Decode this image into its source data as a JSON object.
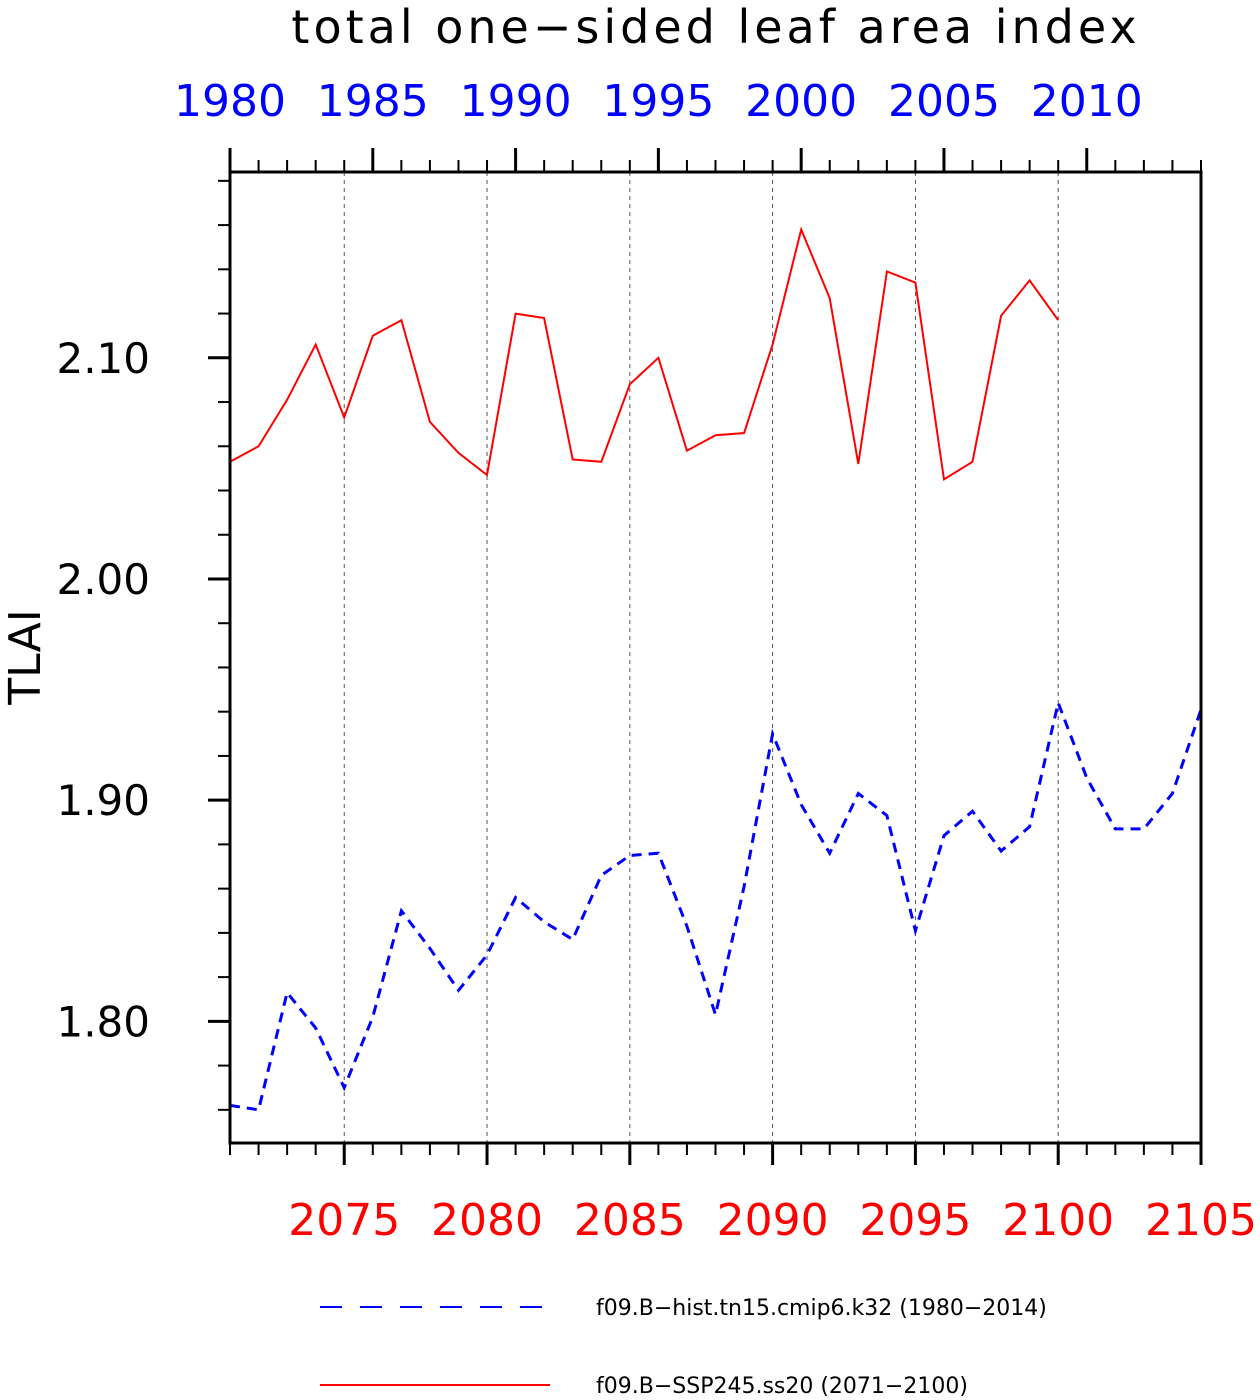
{
  "chart_data": {
    "type": "line",
    "title": "total one−sided leaf area index",
    "ylabel": "TLAI",
    "ylim": [
      1.745,
      2.184
    ],
    "yticks_major": [
      "1.80",
      "1.90",
      "2.00",
      "2.10"
    ],
    "grid": "vertical dashed lines at major bottom-axis ticks",
    "axes": {
      "top": {
        "color": "#0000ff",
        "range": [
          1980,
          2014
        ],
        "tick_labels": [
          "1980",
          "1985",
          "1990",
          "1995",
          "2000",
          "2005",
          "2010"
        ]
      },
      "bottom": {
        "color": "#ff0000",
        "range": [
          2071,
          2105
        ],
        "tick_labels": [
          "2075",
          "2080",
          "2085",
          "2090",
          "2095",
          "2100",
          "2105"
        ]
      }
    },
    "series": [
      {
        "name": "f09.B−hist.tn15.cmip6.k32 (1980−2014)",
        "axis": "top",
        "color": "#0000ff",
        "style": "dashed",
        "x": [
          1980,
          1981,
          1982,
          1983,
          1984,
          1985,
          1986,
          1987,
          1988,
          1989,
          1990,
          1991,
          1992,
          1993,
          1994,
          1995,
          1996,
          1997,
          1998,
          1999,
          2000,
          2001,
          2002,
          2003,
          2004,
          2005,
          2006,
          2007,
          2008,
          2009,
          2010,
          2011,
          2012,
          2013,
          2014
        ],
        "values": [
          1.762,
          1.76,
          1.813,
          1.797,
          1.77,
          1.802,
          1.85,
          1.833,
          1.814,
          1.83,
          1.856,
          1.845,
          1.837,
          1.866,
          1.875,
          1.876,
          1.843,
          1.803,
          1.861,
          1.93,
          1.898,
          1.876,
          1.903,
          1.893,
          1.841,
          1.884,
          1.895,
          1.877,
          1.888,
          1.944,
          1.91,
          1.887,
          1.887,
          1.903,
          1.941
        ]
      },
      {
        "name": "f09.B−SSP245.ss20 (2071−2100)",
        "axis": "bottom",
        "color": "#ff0000",
        "style": "solid",
        "x": [
          2071,
          2072,
          2073,
          2074,
          2075,
          2076,
          2077,
          2078,
          2079,
          2080,
          2081,
          2082,
          2083,
          2084,
          2085,
          2086,
          2087,
          2088,
          2089,
          2090,
          2091,
          2092,
          2093,
          2094,
          2095,
          2096,
          2097,
          2098,
          2099,
          2100
        ],
        "values": [
          2.053,
          2.06,
          2.081,
          2.106,
          2.073,
          2.11,
          2.117,
          2.071,
          2.057,
          2.047,
          2.12,
          2.118,
          2.054,
          2.053,
          2.088,
          2.1,
          2.058,
          2.065,
          2.066,
          2.106,
          2.158,
          2.127,
          2.052,
          2.139,
          2.134,
          2.045,
          2.053,
          2.119,
          2.135,
          2.117
        ]
      }
    ],
    "legend": {
      "placement": "bottom",
      "entries": [
        {
          "label": "f09.B−hist.tn15.cmip6.k32 (1980−2014)",
          "color": "#0000ff",
          "style": "dashed"
        },
        {
          "label": "f09.B−SSP245.ss20 (2071−2100)",
          "color": "#ff0000",
          "style": "solid"
        }
      ]
    }
  }
}
